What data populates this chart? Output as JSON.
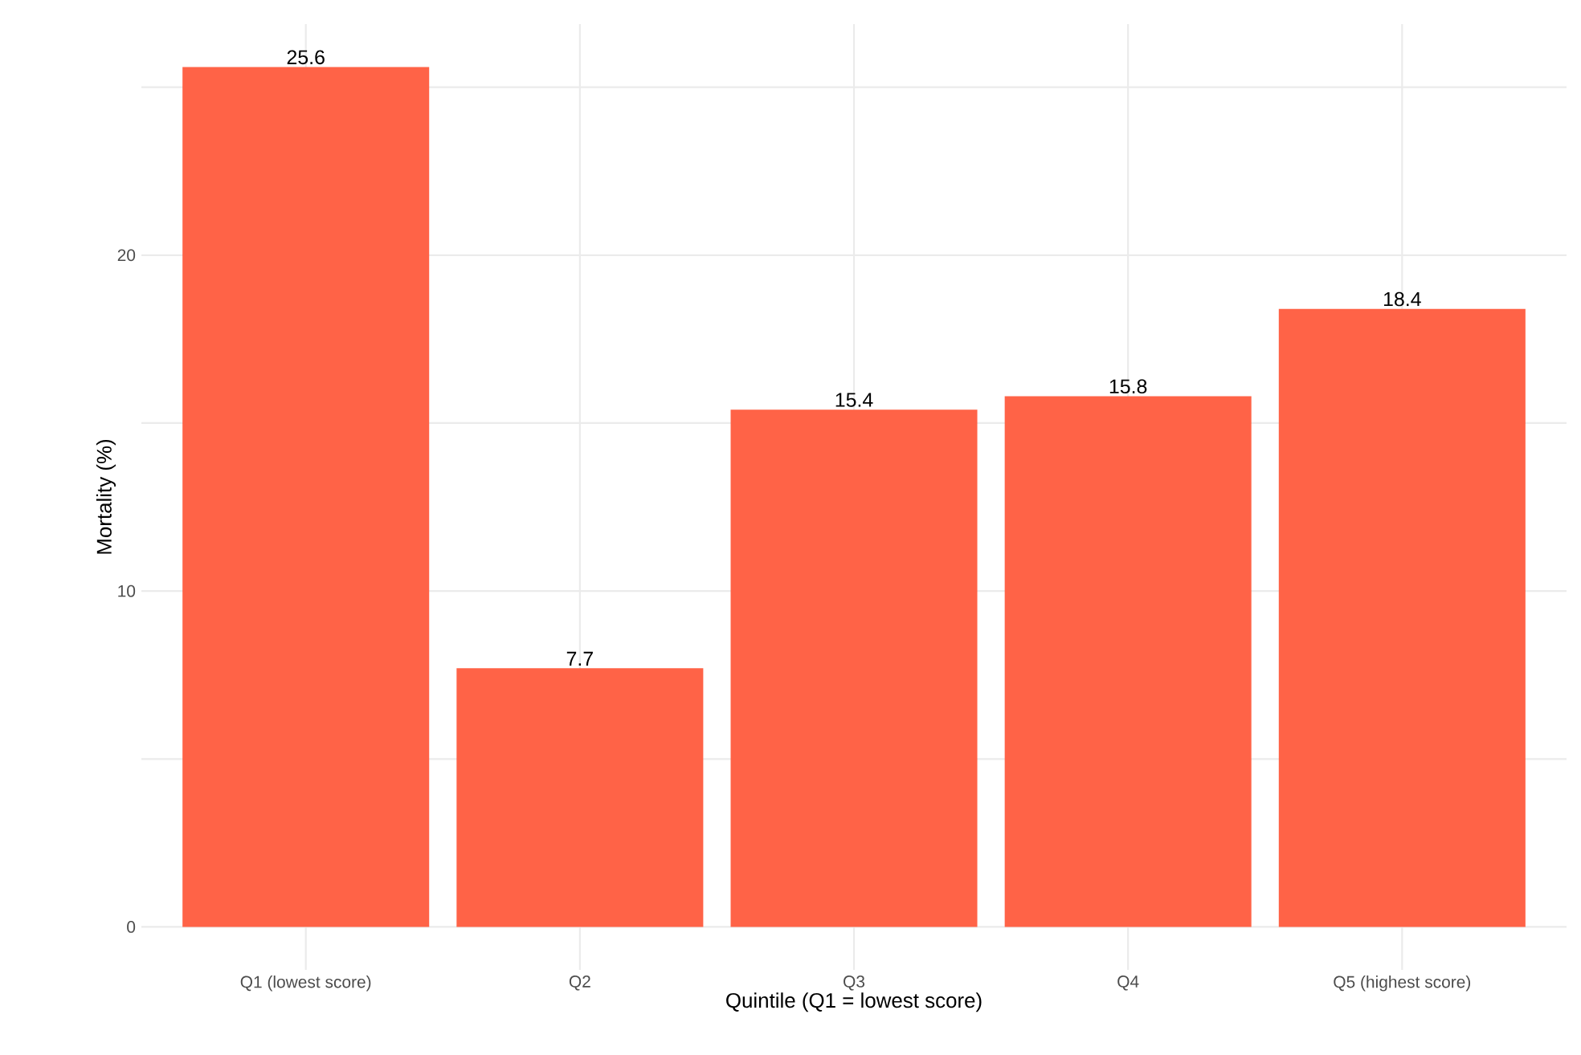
{
  "chart_data": {
    "type": "bar",
    "xlabel": "Quintile (Q1 = lowest score)",
    "ylabel": "Mortality (%)",
    "categories": [
      "Q1 (lowest score)",
      "Q2",
      "Q3",
      "Q4",
      "Q5 (highest score)"
    ],
    "values": [
      25.6,
      7.7,
      15.4,
      15.8,
      18.4
    ],
    "color": "#ff6347",
    "ylim": [
      -1.28,
      26.88
    ],
    "yticks": [
      0,
      {
        "value": 5,
        "label": null
      },
      10,
      {
        "value": 15,
        "label": null
      },
      20,
      {
        "value": 25,
        "label": null
      }
    ],
    "grid": true,
    "data_labels": true
  }
}
